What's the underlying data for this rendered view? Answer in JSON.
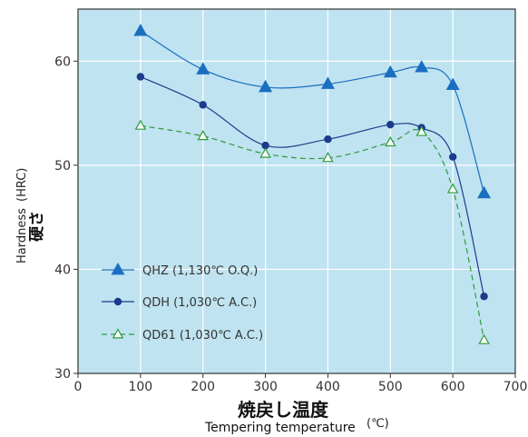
{
  "chart_data": {
    "type": "line",
    "xlabel_jp": "焼戻し温度",
    "xlabel_en": "Tempering temperature",
    "x_unit": "(℃)",
    "ylabel_en": "Hardness",
    "ylabel_unit": "(HRC)",
    "ylabel_jp": "硬さ",
    "xlim": [
      0,
      700
    ],
    "ylim": [
      30,
      65
    ],
    "x_ticks": [
      0,
      100,
      200,
      300,
      400,
      500,
      600,
      700
    ],
    "y_ticks": [
      30,
      40,
      50,
      60
    ],
    "grid": true,
    "legend_position": "bottom-left",
    "background_color": "#bfe3f1",
    "series": [
      {
        "name": "QHZ (1,130℃ O.Q.)",
        "marker": "filled-triangle",
        "line_style": "solid",
        "color": "#1a6fc0",
        "x": [
          100,
          200,
          300,
          400,
          500,
          550,
          600,
          650
        ],
        "y": [
          62.9,
          59.2,
          57.5,
          57.8,
          58.9,
          59.4,
          57.7,
          47.3
        ]
      },
      {
        "name": "QDH (1,030℃ A.C.)",
        "marker": "filled-circle",
        "line_style": "solid",
        "color": "#1c3b8c",
        "x": [
          100,
          200,
          300,
          400,
          500,
          550,
          600,
          650
        ],
        "y": [
          58.5,
          55.8,
          51.9,
          52.5,
          53.9,
          53.6,
          50.8,
          37.4
        ]
      },
      {
        "name": "QD61 (1,030℃ A.C.)",
        "marker": "open-triangle",
        "line_style": "dashed",
        "color": "#2e9a3c",
        "x": [
          100,
          200,
          300,
          400,
          500,
          550,
          600,
          650
        ],
        "y": [
          53.8,
          52.8,
          51.1,
          50.7,
          52.2,
          53.2,
          47.7,
          33.2
        ]
      }
    ]
  }
}
